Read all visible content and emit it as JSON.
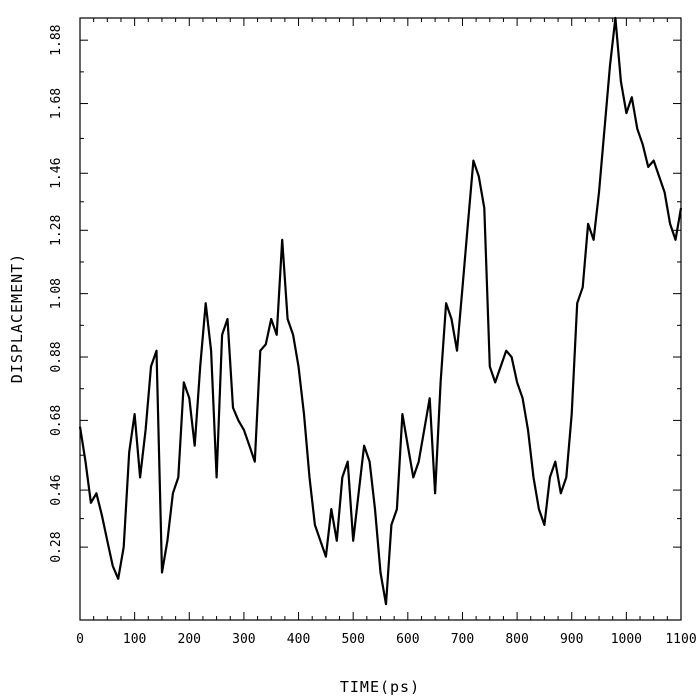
{
  "chart_data": {
    "type": "line",
    "title": "",
    "xlabel": "TIME(ps)",
    "ylabel": "DISPLACEMENT)",
    "xlim": [
      0,
      1100
    ],
    "ylim": [
      0.05,
      1.95
    ],
    "xticks": [
      0,
      100,
      200,
      300,
      400,
      500,
      600,
      700,
      800,
      900,
      1000,
      1100
    ],
    "xtick_labels": [
      "0",
      "100",
      "200",
      "300",
      "400",
      "500",
      "600",
      "700",
      "800",
      "900",
      "1000",
      "1100"
    ],
    "yticks": [
      0.28,
      0.46,
      0.68,
      0.88,
      1.08,
      1.28,
      1.46,
      1.68,
      1.88
    ],
    "ytick_labels": [
      "0.28",
      "0.46",
      "0.68",
      "0.88",
      "1.08",
      "1.28",
      "1.46",
      "1.68",
      "1.88"
    ],
    "line_color": "#000000",
    "series": [
      {
        "x": [
          0,
          10,
          20,
          30,
          40,
          50,
          60,
          70,
          80,
          90,
          100,
          110,
          120,
          130,
          140,
          150,
          160,
          170,
          180,
          190,
          200,
          210,
          220,
          230,
          240,
          250,
          260,
          270,
          280,
          290,
          300,
          310,
          320,
          330,
          340,
          350,
          360,
          370,
          380,
          390,
          400,
          410,
          420,
          430,
          440,
          450,
          460,
          470,
          480,
          490,
          500,
          510,
          520,
          530,
          540,
          550,
          560,
          570,
          580,
          590,
          600,
          610,
          620,
          630,
          640,
          650,
          660,
          670,
          680,
          690,
          700,
          710,
          720,
          730,
          740,
          750,
          760,
          770,
          780,
          790,
          800,
          810,
          820,
          830,
          840,
          850,
          860,
          870,
          880,
          890,
          900,
          910,
          920,
          930,
          940,
          950,
          960,
          970,
          980,
          990,
          1000,
          1010,
          1020,
          1030,
          1040,
          1050,
          1060,
          1070,
          1080,
          1090,
          1100
        ],
        "values": [
          0.66,
          0.55,
          0.42,
          0.45,
          0.38,
          0.3,
          0.22,
          0.18,
          0.28,
          0.58,
          0.7,
          0.5,
          0.65,
          0.85,
          0.9,
          0.2,
          0.3,
          0.45,
          0.5,
          0.8,
          0.75,
          0.6,
          0.85,
          1.05,
          0.9,
          0.5,
          0.95,
          1.0,
          0.72,
          0.68,
          0.65,
          0.6,
          0.55,
          0.9,
          0.92,
          1.0,
          0.95,
          1.25,
          1.0,
          0.95,
          0.85,
          0.7,
          0.5,
          0.35,
          0.3,
          0.25,
          0.4,
          0.3,
          0.5,
          0.55,
          0.3,
          0.45,
          0.6,
          0.55,
          0.4,
          0.2,
          0.1,
          0.35,
          0.4,
          0.7,
          0.6,
          0.5,
          0.55,
          0.65,
          0.75,
          0.45,
          0.8,
          1.05,
          1.0,
          0.9,
          1.1,
          1.3,
          1.5,
          1.45,
          1.35,
          0.85,
          0.8,
          0.85,
          0.9,
          0.88,
          0.8,
          0.75,
          0.65,
          0.5,
          0.4,
          0.35,
          0.5,
          0.55,
          0.45,
          0.5,
          0.7,
          1.05,
          1.1,
          1.3,
          1.25,
          1.4,
          1.6,
          1.8,
          1.95,
          1.75,
          1.65,
          1.7,
          1.6,
          1.55,
          1.48,
          1.5,
          1.45,
          1.4,
          1.3,
          1.25,
          1.35
        ]
      }
    ]
  }
}
